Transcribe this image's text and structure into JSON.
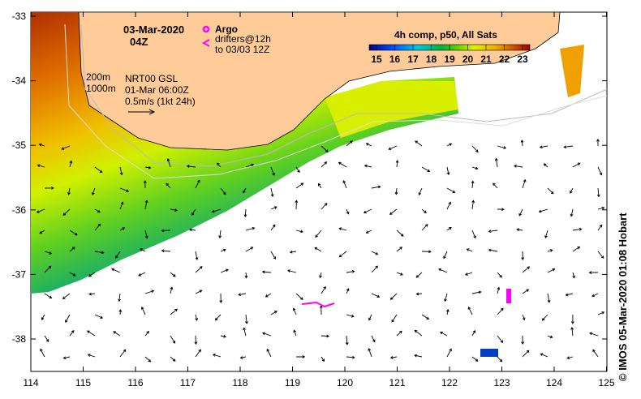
{
  "map": {
    "date": "03-Mar-2020",
    "hour": "04Z",
    "legend_argo": "Argo",
    "legend_drifters_1": "drifters@12h",
    "legend_drifters_2": "to 03/03 12Z",
    "colorbar_title": "4h comp, p50, All Sats",
    "colorbar_ticks": [
      "15",
      "16",
      "17",
      "18",
      "19",
      "20",
      "21",
      "22",
      "23"
    ],
    "isobath_200": "200m",
    "isobath_1000": "1000m",
    "current_source": "NRT00 GSL",
    "current_time": "01-Mar 06:00Z",
    "current_scale": "0.5m/s (1kt 24h)",
    "x_ticks": [
      "114",
      "115",
      "116",
      "117",
      "118",
      "119",
      "120",
      "121",
      "122",
      "123",
      "124",
      "125"
    ],
    "y_ticks": [
      "-33",
      "-34",
      "-35",
      "-36",
      "-37",
      "-38"
    ],
    "credit": "© IMOS 05-Mar-2020 01:08 Hobart",
    "colors": {
      "land": "#FFCC99",
      "argo": "#FF00FF",
      "drifter": "#FF00FF"
    }
  }
}
